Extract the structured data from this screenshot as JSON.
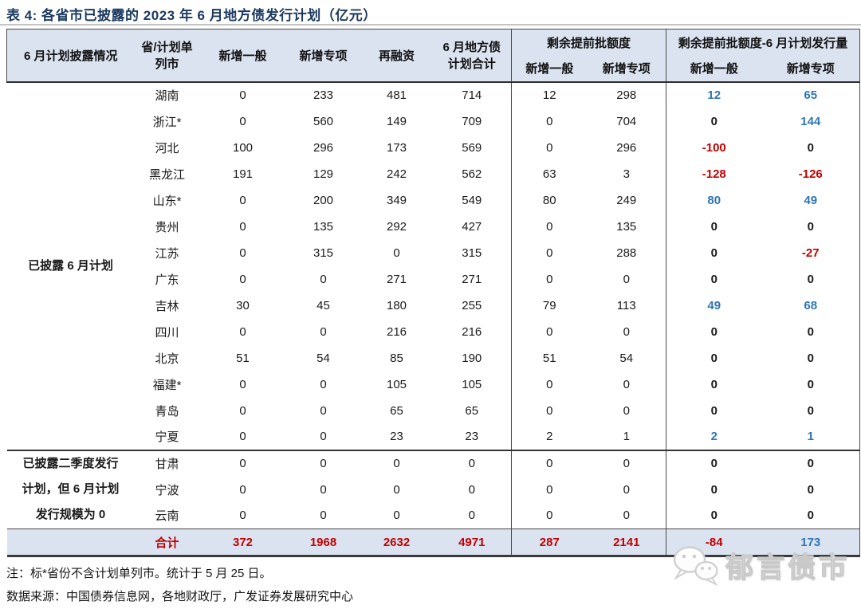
{
  "title": "表 4:  各省市已披露的 2023 年 6 月地方债发行计划（亿元）",
  "table": {
    "header": {
      "disclosure": "6 月计划披露情况",
      "province_line1": "省/计划单",
      "province_line2": "列市",
      "new_general": "新增一般",
      "new_special": "新增专项",
      "refinancing": "再融资",
      "june_total_line1": "6 月地方债",
      "june_total_line2": "计划合计",
      "group_remaining": "剩余提前批额度",
      "group_diff": "剩余提前批额度-6 月计划发行量",
      "sub": [
        "新增一般",
        "新增专项"
      ]
    },
    "sections": [
      {
        "label_lines": [
          "已披露 6 月计划"
        ],
        "rows": [
          {
            "province": "湖南",
            "values": [
              0,
              233,
              481,
              714,
              12,
              298,
              12,
              65
            ]
          },
          {
            "province": "浙江*",
            "values": [
              0,
              560,
              149,
              709,
              0,
              704,
              0,
              144
            ]
          },
          {
            "province": "河北",
            "values": [
              100,
              296,
              173,
              569,
              0,
              296,
              -100,
              0
            ]
          },
          {
            "province": "黑龙江",
            "values": [
              191,
              129,
              242,
              562,
              63,
              3,
              -128,
              -126
            ]
          },
          {
            "province": "山东*",
            "values": [
              0,
              200,
              349,
              549,
              80,
              249,
              80,
              49
            ]
          },
          {
            "province": "贵州",
            "values": [
              0,
              135,
              292,
              427,
              0,
              135,
              0,
              0
            ]
          },
          {
            "province": "江苏",
            "values": [
              0,
              315,
              0,
              315,
              0,
              288,
              0,
              -27
            ]
          },
          {
            "province": "广东",
            "values": [
              0,
              0,
              271,
              271,
              0,
              0,
              0,
              0
            ]
          },
          {
            "province": "吉林",
            "values": [
              30,
              45,
              180,
              255,
              79,
              113,
              49,
              68
            ]
          },
          {
            "province": "四川",
            "values": [
              0,
              0,
              216,
              216,
              0,
              0,
              0,
              0
            ]
          },
          {
            "province": "北京",
            "values": [
              51,
              54,
              85,
              190,
              51,
              54,
              0,
              0
            ]
          },
          {
            "province": "福建*",
            "values": [
              0,
              0,
              105,
              105,
              0,
              0,
              0,
              0
            ]
          },
          {
            "province": "青岛",
            "values": [
              0,
              0,
              65,
              65,
              0,
              0,
              0,
              0
            ]
          },
          {
            "province": "宁夏",
            "values": [
              0,
              0,
              23,
              23,
              2,
              1,
              2,
              1
            ]
          }
        ]
      },
      {
        "label_lines": [
          "已披露二季度发行",
          "计划，但 6 月计划",
          "发行规模为 0"
        ],
        "rows": [
          {
            "province": "甘肃",
            "values": [
              0,
              0,
              0,
              0,
              0,
              0,
              0,
              0
            ]
          },
          {
            "province": "宁波",
            "values": [
              0,
              0,
              0,
              0,
              0,
              0,
              0,
              0
            ]
          },
          {
            "province": "云南",
            "values": [
              0,
              0,
              0,
              0,
              0,
              0,
              0,
              0
            ]
          }
        ]
      }
    ],
    "total": {
      "label": "合计",
      "values": [
        372,
        1968,
        2632,
        4971,
        287,
        2141,
        -84,
        173
      ]
    }
  },
  "notes": [
    "注：标*省份不含计划单列市。统计于 5 月 25 日。",
    "数据来源：中国债券信息网，各地财政厅，广发证券发展研究中心"
  ],
  "watermark": {
    "text": "郁言债市"
  },
  "colors": {
    "title_navy": "#1c3a61",
    "header_bg": "#dbe3f0",
    "positive_blue": "#2e75b6",
    "negative_red": "#c00000"
  }
}
